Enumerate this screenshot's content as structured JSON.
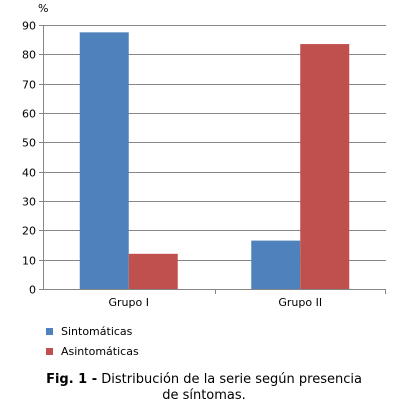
{
  "chart_data": {
    "type": "bar",
    "ylabel": "%",
    "ylim": [
      0,
      90
    ],
    "yticks": [
      0,
      10,
      20,
      30,
      40,
      50,
      60,
      70,
      80,
      90
    ],
    "grid": true,
    "categories": [
      "Grupo I",
      "Grupo II"
    ],
    "series": [
      {
        "name": "Sintomáticas",
        "color": "#4f81bd",
        "values": [
          87.5,
          16.5
        ]
      },
      {
        "name": "Asintomáticas",
        "color": "#c0504d",
        "values": [
          12,
          83.5
        ]
      }
    ],
    "legend_position": "bottom-left"
  },
  "caption": {
    "label": "Fig. 1 -",
    "line1": "Distribución de la serie según presencia",
    "line2": "de síntomas."
  }
}
